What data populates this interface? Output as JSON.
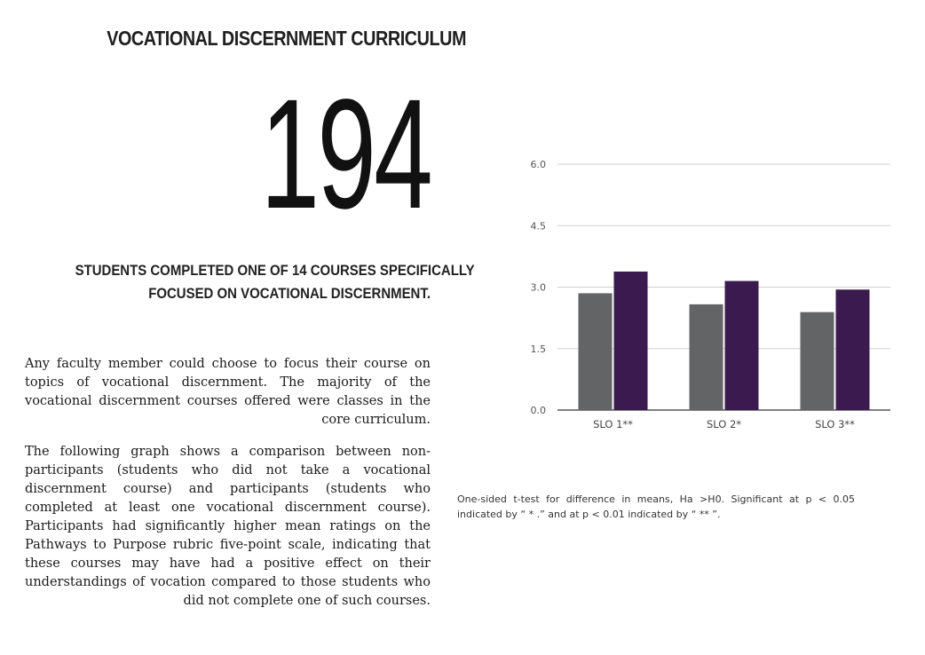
{
  "header": {
    "title": "VOCATIONAL DISCERNMENT CURRICULUM",
    "big_number": "194",
    "subhead_line1": "STUDENTS COMPLETED ONE OF 14 COURSES SPECIFICALLY",
    "subhead_line2": "FOCUSED ON VOCATIONAL DISCERNMENT."
  },
  "body": {
    "paragraph1": "Any faculty member could choose to focus their course on topics of vocational discernment. The majority of the vocational discernment courses offered were classes in the core curriculum.",
    "paragraph2": "The following graph shows a comparison between non-participants (students who did not take a vocational discernment course) and participants (students who completed at least one vocational discernment course). Participants had significantly higher mean ratings on the Pathways to Purpose rubric five-point scale, indicating that these courses may have had a positive effect on their understandings of vocation compared to those students who did not complete one of such courses."
  },
  "footnote": "One-sided t-test for difference in means, Ha >H0. Significant at p < 0.05 indicated by “ * .” and at p < 0.01 indicated by “ ** ”.",
  "chart_data": {
    "type": "bar",
    "categories": [
      "SLO 1**",
      "SLO 2*",
      "SLO 3**"
    ],
    "series": [
      {
        "values": [
          2.85,
          2.58,
          2.39
        ],
        "color": "#636466"
      },
      {
        "values": [
          3.38,
          3.15,
          2.94
        ],
        "color": "#3b1b4f"
      }
    ],
    "yticks": [
      "0.0",
      "1.5",
      "3.0",
      "4.5",
      "6.0"
    ],
    "ylim": [
      0,
      6
    ],
    "grid": true,
    "legend": "none"
  }
}
